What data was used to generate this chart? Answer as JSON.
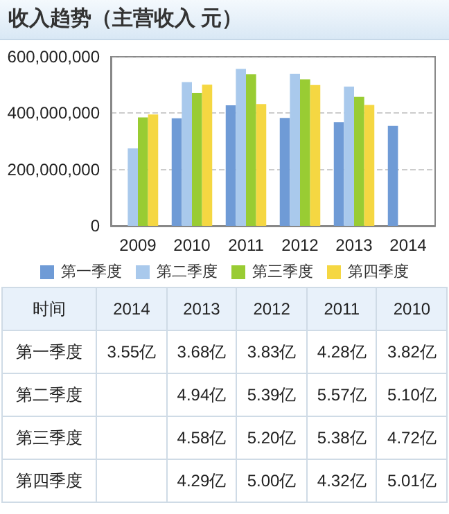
{
  "chart_data": [
    {
      "type": "bar",
      "title": "收入趋势（主营收入 元）",
      "categories": [
        "2009",
        "2010",
        "2011",
        "2012",
        "2013",
        "2014"
      ],
      "series": [
        {
          "name": "第一季度",
          "color": "#6f9bd6",
          "values": [
            null,
            382000000,
            428000000,
            383000000,
            368000000,
            355000000
          ]
        },
        {
          "name": "第二季度",
          "color": "#a9c9ec",
          "values": [
            275000000,
            510000000,
            557000000,
            539000000,
            494000000,
            null
          ]
        },
        {
          "name": "第三季度",
          "color": "#99cc33",
          "values": [
            385000000,
            472000000,
            538000000,
            520000000,
            458000000,
            null
          ]
        },
        {
          "name": "第四季度",
          "color": "#f5d742",
          "values": [
            395000000,
            501000000,
            432000000,
            500000000,
            429000000,
            null
          ]
        }
      ],
      "ylim": [
        0,
        600000000
      ],
      "yticks": [
        {
          "value": 0,
          "label": "0"
        },
        {
          "value": 200000000,
          "label": "200,000,000"
        },
        {
          "value": 400000000,
          "label": "400,000,000"
        },
        {
          "value": 600000000,
          "label": "600,000,000"
        }
      ],
      "grid": "y",
      "legend": "bottom"
    },
    {
      "type": "heatmap",
      "annotations": [
        "时间"
      ],
      "categories": [
        "2014",
        "2013",
        "2012",
        "2011",
        "2010"
      ],
      "y_categories": [
        "第一季度",
        "第二季度",
        "第三季度",
        "第四季度"
      ],
      "cells": [
        [
          3.55,
          3.68,
          3.83,
          4.28,
          3.82
        ],
        [
          null,
          4.94,
          5.39,
          5.57,
          5.1
        ],
        [
          null,
          4.58,
          5.2,
          5.38,
          4.72
        ],
        [
          null,
          4.29,
          5.0,
          4.32,
          5.01
        ]
      ],
      "cell_labels": [
        [
          "3.55亿",
          "3.68亿",
          "3.83亿",
          "4.28亿",
          "3.82亿"
        ],
        [
          null,
          "4.94亿",
          "5.39亿",
          "5.57亿",
          "5.10亿"
        ],
        [
          null,
          "4.58亿",
          "5.20亿",
          "5.38亿",
          "4.72亿"
        ],
        [
          null,
          "4.29亿",
          "5.00亿",
          "4.32亿",
          "5.01亿"
        ]
      ]
    }
  ]
}
